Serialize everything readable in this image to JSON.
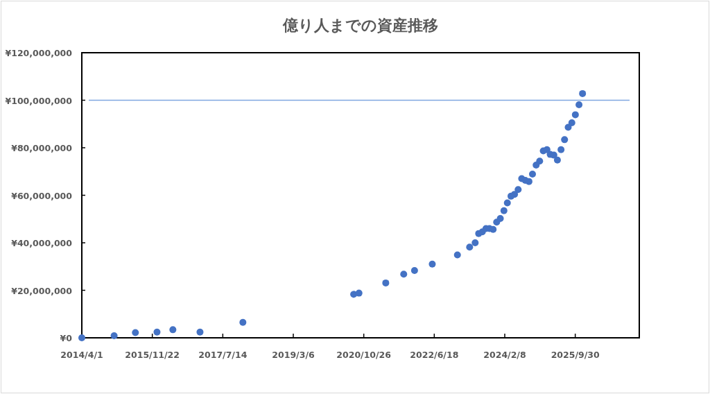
{
  "chart_data": {
    "type": "scatter",
    "title": "億り人までの資産推移",
    "x": [
      "2014-04-01",
      "2015-01-01",
      "2015-07-01",
      "2016-01-01",
      "2016-05-15",
      "2017-01-01",
      "2018-01-01",
      "2020-08-01",
      "2020-09-15",
      "2021-05-01",
      "2021-10-01",
      "2022-01-01",
      "2022-06-01",
      "2023-01-01",
      "2023-04-15",
      "2023-06-01",
      "2023-07-01",
      "2023-08-01",
      "2023-09-01",
      "2023-10-01",
      "2023-11-01",
      "2023-12-01",
      "2024-01-01",
      "2024-02-01",
      "2024-03-01",
      "2024-04-01",
      "2024-05-01",
      "2024-06-01",
      "2024-07-01",
      "2024-08-01",
      "2024-09-01",
      "2024-10-01",
      "2024-11-01",
      "2024-12-01",
      "2025-01-01",
      "2025-02-01",
      "2025-03-01",
      "2025-04-01",
      "2025-05-01",
      "2025-06-01",
      "2025-07-01",
      "2025-08-01",
      "2025-09-01",
      "2025-10-01",
      "2025-11-01",
      "2025-12-01"
    ],
    "values": [
      0,
      900000,
      2200000,
      2400000,
      3400000,
      2400000,
      6500000,
      18300000,
      18800000,
      23100000,
      26800000,
      28300000,
      31000000,
      34900000,
      38200000,
      40000000,
      43900000,
      44600000,
      46000000,
      46000000,
      45600000,
      48700000,
      50200000,
      53500000,
      56800000,
      59600000,
      60400000,
      62400000,
      67000000,
      66300000,
      65800000,
      68900000,
      72700000,
      74400000,
      78700000,
      79200000,
      77200000,
      76900000,
      74800000,
      79200000,
      83400000,
      88600000,
      90500000,
      93900000,
      98100000,
      102800000
    ],
    "color": "#4472c4",
    "marker": "circle",
    "grid": false,
    "xlim": [
      "2014-04-01",
      "2027-03-29"
    ],
    "xticks": [
      {
        "value": "2014-04-01",
        "label": "2014/4/1"
      },
      {
        "value": "2015-11-22",
        "label": "2015/11/22"
      },
      {
        "value": "2017-07-14",
        "label": "2017/7/14"
      },
      {
        "value": "2019-03-06",
        "label": "2019/3/6"
      },
      {
        "value": "2020-10-26",
        "label": "2020/10/26"
      },
      {
        "value": "2022-06-18",
        "label": "2022/6/18"
      },
      {
        "value": "2024-02-08",
        "label": "2024/2/8"
      },
      {
        "value": "2025-09-30",
        "label": "2025/9/30"
      }
    ],
    "ylim": [
      0,
      120000000
    ],
    "yticks": [
      {
        "value": 0,
        "label": "¥0"
      },
      {
        "value": 20000000,
        "label": "¥20,000,000"
      },
      {
        "value": 40000000,
        "label": "¥40,000,000"
      },
      {
        "value": 60000000,
        "label": "¥60,000,000"
      },
      {
        "value": 80000000,
        "label": "¥80,000,000"
      },
      {
        "value": 100000000,
        "label": "¥100,000,000"
      },
      {
        "value": 120000000,
        "label": "¥120,000,000"
      }
    ],
    "ref_lines": [
      {
        "axis": "y",
        "value": 100000000,
        "color": "#7fa6e0",
        "line_style": "solid"
      }
    ]
  }
}
